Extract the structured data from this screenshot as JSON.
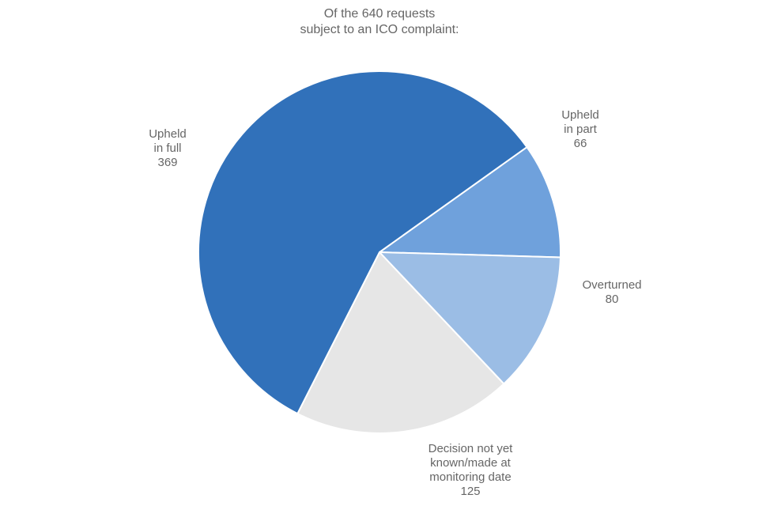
{
  "chart_data": {
    "type": "pie",
    "title_lines": [
      "Of the 640 requests",
      "subject to an ICO complaint:"
    ],
    "slices": [
      {
        "label_lines": [
          "Upheld",
          "in part"
        ],
        "value": 66,
        "value_text": "66",
        "color": "#6FA1DC"
      },
      {
        "label_lines": [
          "Overturned"
        ],
        "value": 80,
        "value_text": "80",
        "color": "#9BBDE5"
      },
      {
        "label_lines": [
          "Decision not yet",
          "known/made at",
          "monitoring date"
        ],
        "value": 125,
        "value_text": "125",
        "color": "#E6E6E6"
      },
      {
        "label_lines": [
          "Upheld",
          "in full"
        ],
        "value": 369,
        "value_text": "369",
        "color": "#3171BA"
      }
    ]
  }
}
